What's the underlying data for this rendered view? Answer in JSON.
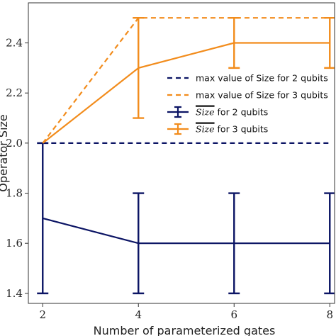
{
  "chart_data": {
    "type": "line",
    "xlabel": "Number of parameterized gates",
    "ylabel": "Operator Size",
    "xlim": [
      1.7,
      8.1
    ],
    "ylim": [
      1.36,
      2.56
    ],
    "xticks": [
      2,
      4,
      6,
      8
    ],
    "yticks": [
      1.4,
      1.6,
      1.8,
      2.0,
      2.2,
      2.4
    ],
    "x": [
      2,
      4,
      6,
      8
    ],
    "grid": false,
    "legend_position": "right-center",
    "series": [
      {
        "legend_text": "max value of Size for 2 qubits",
        "color": "#0b1464",
        "style": "dashed",
        "values": [
          2.0,
          2.0,
          2.0,
          2.0
        ]
      },
      {
        "legend_text": "max value of Size for 3 qubits",
        "color": "#f28c1c",
        "style": "dashed",
        "values": [
          2.0,
          2.5,
          2.5,
          2.5
        ]
      },
      {
        "legend_symbol": "Size",
        "legend_suffix": " for 2 qubits",
        "color": "#0b1464",
        "style": "solid-errorbar",
        "values": [
          1.7,
          1.6,
          1.6,
          1.6
        ],
        "err_low": [
          1.4,
          1.4,
          1.4,
          1.4
        ],
        "err_high": [
          2.0,
          1.8,
          1.8,
          1.8
        ]
      },
      {
        "legend_symbol": "Size",
        "legend_suffix": " for 3 qubits",
        "color": "#f28c1c",
        "style": "solid-errorbar",
        "values": [
          2.0,
          2.3,
          2.4,
          2.4
        ],
        "err_low": [
          2.0,
          2.1,
          2.3,
          2.3
        ],
        "err_high": [
          2.0,
          2.5,
          2.5,
          2.5
        ]
      }
    ]
  }
}
